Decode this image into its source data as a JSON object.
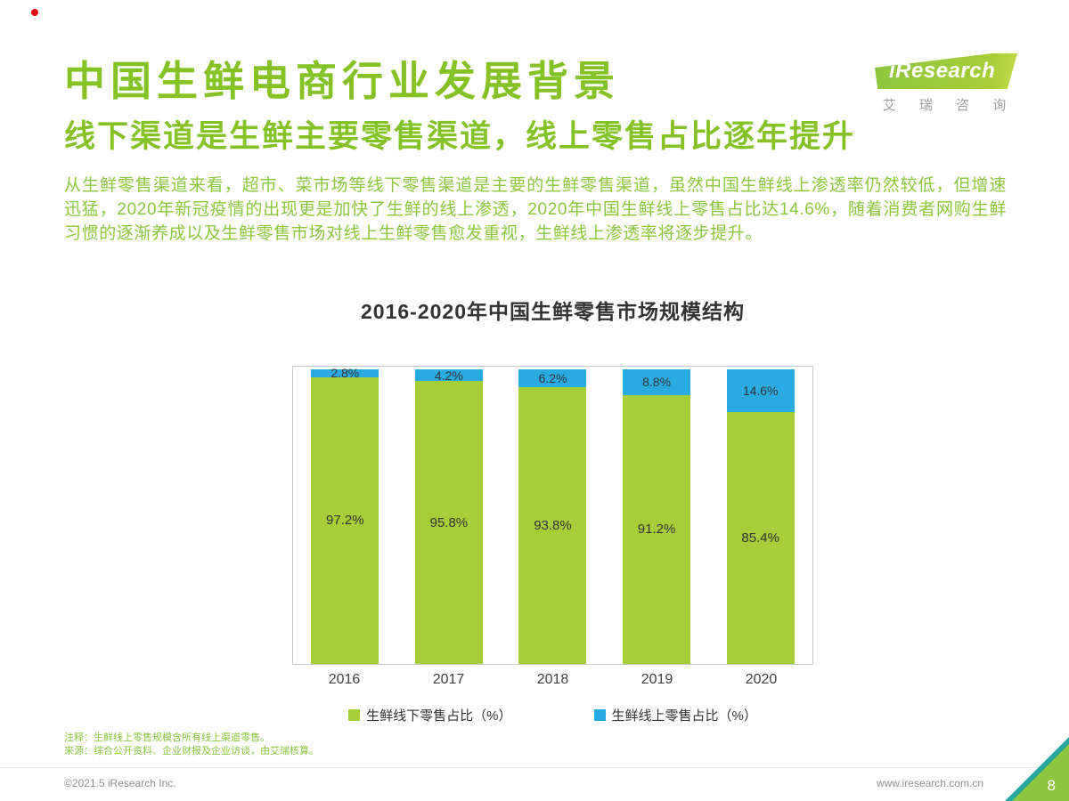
{
  "brand": {
    "logo_text": "iResearch",
    "logo_subtext": "艾 瑞 咨 询",
    "green": "#8DC63F",
    "blue": "#29ABE2",
    "red_dot": "#E60012"
  },
  "page": {
    "title": "中国生鲜电商行业发展背景",
    "subtitle": "线下渠道是生鲜主要零售渠道，线上零售占比逐年提升",
    "paragraph": "从生鲜零售渠道来看，超市、菜市场等线下零售渠道是主要的生鲜零售渠道，虽然中国生鲜线上渗透率仍然较低，但增速迅猛，2020年新冠疫情的出现更是加快了生鲜的线上渗透，2020年中国生鲜线上零售占比达14.6%，随着消费者网购生鲜习惯的逐渐养成以及生鲜零售市场对线上生鲜零售愈发重视，生鲜线上渗透率将逐步提升。"
  },
  "chart_data": {
    "type": "bar",
    "stacked": true,
    "percent_stacked": true,
    "title": "2016-2020年中国生鲜零售市场规模结构",
    "categories": [
      "2016",
      "2017",
      "2018",
      "2019",
      "2020"
    ],
    "series": [
      {
        "name": "生鲜线下零售占比（%）",
        "color": "#A6CE39",
        "values": [
          97.2,
          95.8,
          93.8,
          91.2,
          85.4
        ]
      },
      {
        "name": "生鲜线上零售占比（%）",
        "color": "#29ABE2",
        "values": [
          2.8,
          4.2,
          6.2,
          8.8,
          14.6
        ]
      }
    ],
    "ylim": [
      0,
      100
    ],
    "grid": false,
    "legend_position": "bottom",
    "value_label_suffix": "%"
  },
  "notes": {
    "line1": "注释：生鲜线上零售规模含所有线上渠道零售。",
    "line2": "来源：综合公开资料、企业财报及企业访谈，由艾瑞核算。"
  },
  "footer": {
    "copyright": "©2021.5 iResearch Inc.",
    "website": "www.iresearch.com.cn",
    "page_number": "8"
  }
}
